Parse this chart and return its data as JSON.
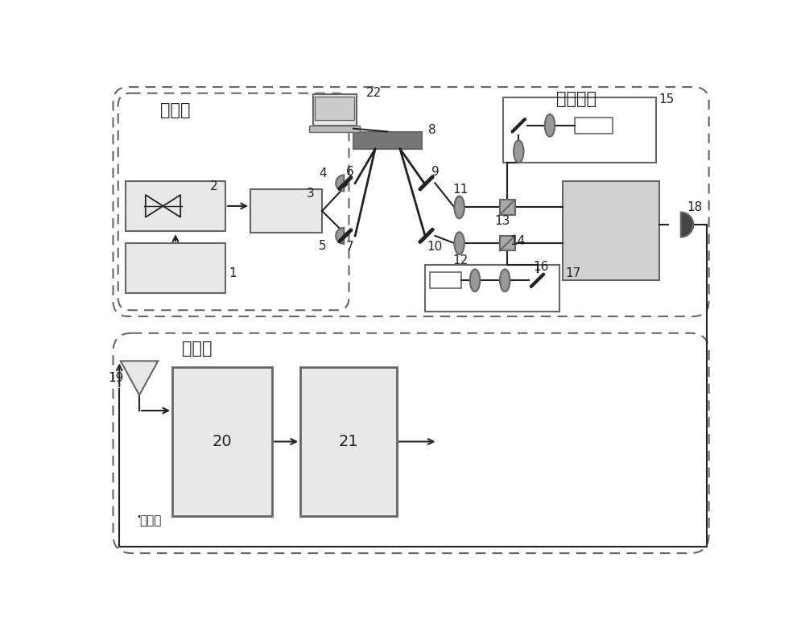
{
  "bg_color": "#ffffff",
  "border_color": "#666666",
  "box_fill": "#d0d0d0",
  "box_fill_light": "#e8e8e8",
  "component_color": "#999999",
  "line_color": "#222222",
  "label_top": "空间信道",
  "label_transmit": "发送端",
  "label_receive": "接收端",
  "label_local": "本振光"
}
